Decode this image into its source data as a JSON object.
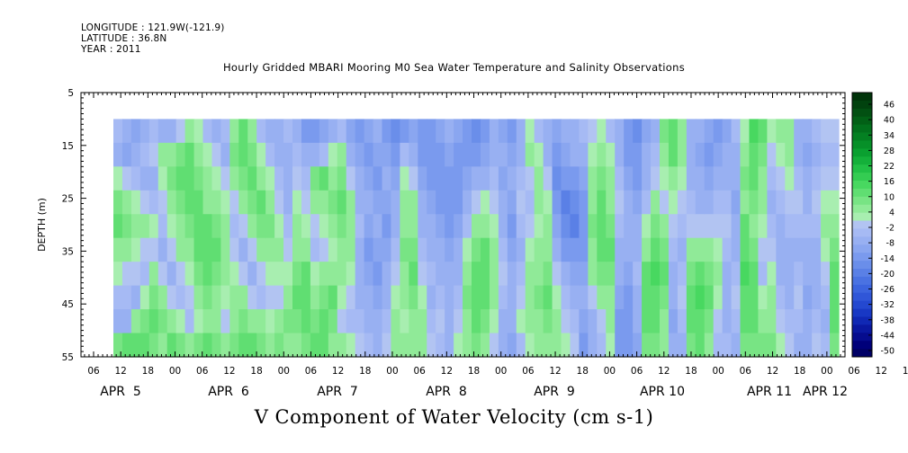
{
  "header": {
    "longitude": "LONGITUDE : 121.9W(-121.9)",
    "latitude": "LATITUDE : 36.8N",
    "year": "YEAR : 2011"
  },
  "chart_data": {
    "type": "heatmap",
    "title": "Hourly Gridded MBARI Mooring M0 Sea Water Temperature and Salinity Observations",
    "bottom_title": "V Component of Water Velocity (cm s-1)",
    "ylabel": "DEPTH (m)",
    "ylim": [
      55,
      5
    ],
    "yticks": [
      "5",
      "15",
      "25",
      "35",
      "45",
      "55"
    ],
    "x_hour_ticks": [
      "06",
      "12",
      "18",
      "00",
      "06",
      "12",
      "18",
      "00",
      "06",
      "12",
      "18",
      "00",
      "06",
      "12",
      "18",
      "00",
      "06",
      "12",
      "18",
      "00",
      "06",
      "12",
      "18",
      "00",
      "06",
      "12",
      "18",
      "00",
      "06",
      "12",
      "18",
      "00"
    ],
    "x_date_labels": [
      "APR  5",
      "APR  6",
      "APR  7",
      "APR  8",
      "APR  9",
      "APR 10",
      "APR 11",
      "APR 12"
    ],
    "data_depth_range": [
      10,
      55
    ],
    "colorbar": {
      "labels": [
        "46",
        "40",
        "34",
        "28",
        "22",
        "16",
        "10",
        "4",
        "-2",
        "-8",
        "-14",
        "-20",
        "-26",
        "-32",
        "-38",
        "-44",
        "-50"
      ],
      "levels": [
        -50,
        -47,
        -44,
        -41,
        -38,
        -35,
        -32,
        -29,
        -26,
        -23,
        -20,
        -17,
        -14,
        -11,
        -8,
        -5,
        -2,
        1,
        4,
        7,
        10,
        13,
        16,
        19,
        22,
        25,
        28,
        31,
        34,
        37,
        40,
        43,
        46,
        49
      ],
      "colors": [
        "#000066",
        "#00007a",
        "#060c8e",
        "#0a18a0",
        "#1028b4",
        "#1838c4",
        "#2448d0",
        "#3056d8",
        "#3c64de",
        "#4a72e2",
        "#5a80e6",
        "#6a8eea",
        "#7a9aee",
        "#8aa6f0",
        "#98b0f2",
        "#a6baf4",
        "#b2c4f2",
        "#a8eeb0",
        "#90ea98",
        "#78e484",
        "#60de72",
        "#48d860",
        "#34cc52",
        "#22c046",
        "#14b03a",
        "#0aa030",
        "#069028",
        "#048022",
        "#02701c",
        "#026016",
        "#025012",
        "#01420e",
        "#01340a"
      ]
    },
    "columns": [
      [
        -5,
        -7,
        2,
        8,
        10,
        6,
        2,
        -3,
        -8,
        8
      ],
      [
        -8,
        -10,
        0,
        6,
        8,
        4,
        0,
        -4,
        -6,
        10
      ],
      [
        -10,
        -8,
        -4,
        2,
        6,
        2,
        -2,
        -6,
        4,
        12
      ],
      [
        -6,
        -4,
        -6,
        -2,
        4,
        0,
        -4,
        2,
        8,
        10
      ],
      [
        -4,
        -2,
        -8,
        -4,
        2,
        -2,
        4,
        8,
        10,
        8
      ],
      [
        -6,
        4,
        2,
        -2,
        -4,
        -6,
        -2,
        4,
        8,
        6
      ],
      [
        -8,
        6,
        8,
        4,
        2,
        -2,
        -6,
        -2,
        4,
        10
      ],
      [
        -2,
        8,
        10,
        8,
        6,
        4,
        -2,
        -4,
        2,
        8
      ],
      [
        4,
        10,
        12,
        10,
        8,
        6,
        2,
        -2,
        -4,
        6
      ],
      [
        2,
        6,
        8,
        10,
        12,
        10,
        8,
        4,
        2,
        8
      ],
      [
        -4,
        2,
        4,
        6,
        10,
        12,
        10,
        8,
        6,
        10
      ],
      [
        -6,
        -2,
        2,
        4,
        8,
        10,
        8,
        6,
        4,
        8
      ],
      [
        -4,
        -6,
        -2,
        2,
        4,
        6,
        4,
        2,
        -2,
        6
      ],
      [
        6,
        8,
        4,
        -2,
        -4,
        -2,
        2,
        4,
        6,
        8
      ],
      [
        10,
        12,
        8,
        4,
        -2,
        -6,
        -2,
        4,
        8,
        10
      ],
      [
        4,
        8,
        10,
        8,
        4,
        -2,
        -6,
        -2,
        6,
        10
      ],
      [
        -4,
        2,
        6,
        10,
        8,
        4,
        -2,
        -4,
        4,
        8
      ],
      [
        -8,
        -4,
        2,
        6,
        8,
        6,
        2,
        -2,
        2,
        6
      ],
      [
        -6,
        -8,
        -4,
        -2,
        2,
        4,
        2,
        -2,
        4,
        8
      ],
      [
        -4,
        -6,
        -8,
        -6,
        -4,
        -2,
        2,
        6,
        8,
        6
      ],
      [
        -8,
        -4,
        -2,
        2,
        4,
        6,
        8,
        10,
        8,
        6
      ],
      [
        -12,
        -8,
        -4,
        -2,
        2,
        6,
        10,
        12,
        10,
        8
      ],
      [
        -14,
        -6,
        8,
        4,
        -2,
        -4,
        2,
        6,
        8,
        10
      ],
      [
        -10,
        -4,
        10,
        6,
        2,
        -2,
        4,
        8,
        10,
        12
      ],
      [
        -8,
        2,
        6,
        8,
        4,
        2,
        6,
        10,
        8,
        6
      ],
      [
        -4,
        4,
        8,
        10,
        8,
        6,
        4,
        2,
        -2,
        4
      ],
      [
        -10,
        -6,
        -2,
        4,
        6,
        4,
        2,
        -2,
        -4,
        2
      ],
      [
        -12,
        -10,
        -8,
        -6,
        -4,
        -6,
        -8,
        -6,
        -4,
        -2
      ],
      [
        -10,
        -12,
        -10,
        -8,
        -10,
        -12,
        -10,
        -8,
        -6,
        -4
      ],
      [
        -8,
        -10,
        -12,
        -10,
        -8,
        -10,
        -12,
        -10,
        -8,
        -6
      ],
      [
        -14,
        -10,
        -8,
        -10,
        -12,
        -10,
        -8,
        -6,
        -4,
        -2
      ],
      [
        -16,
        -12,
        -10,
        -8,
        -6,
        -4,
        -2,
        2,
        4,
        6
      ],
      [
        -12,
        -4,
        2,
        4,
        6,
        8,
        6,
        4,
        2,
        4
      ],
      [
        -10,
        -6,
        -2,
        4,
        6,
        8,
        10,
        8,
        6,
        4
      ],
      [
        -14,
        -12,
        -10,
        -8,
        -6,
        -4,
        -2,
        2,
        4,
        6
      ],
      [
        -12,
        -14,
        -12,
        -10,
        -8,
        -6,
        -4,
        -6,
        -4,
        -2
      ],
      [
        -10,
        -12,
        -14,
        -12,
        -10,
        -8,
        -6,
        -4,
        -2,
        -4
      ],
      [
        -8,
        -10,
        -12,
        -14,
        -12,
        -10,
        -8,
        -6,
        -8,
        -6
      ],
      [
        -10,
        -12,
        -14,
        -12,
        -10,
        -8,
        -6,
        -4,
        -2,
        2
      ],
      [
        -14,
        -12,
        -10,
        -8,
        -4,
        2,
        6,
        8,
        6,
        4
      ],
      [
        -16,
        -14,
        -8,
        -2,
        4,
        8,
        10,
        12,
        10,
        8
      ],
      [
        -12,
        -10,
        -6,
        2,
        6,
        10,
        12,
        10,
        8,
        6
      ],
      [
        -8,
        -6,
        -4,
        -2,
        2,
        4,
        6,
        4,
        2,
        -2
      ],
      [
        -10,
        -8,
        -10,
        -8,
        -6,
        -4,
        -2,
        -4,
        -6,
        -8
      ],
      [
        -12,
        -10,
        -8,
        -10,
        -12,
        -10,
        -8,
        -6,
        -8,
        -10
      ],
      [
        -8,
        -6,
        -4,
        -2,
        -4,
        -6,
        -4,
        -2,
        2,
        -4
      ],
      [
        2,
        4,
        -2,
        -4,
        -2,
        2,
        4,
        6,
        4,
        2
      ],
      [
        -4,
        2,
        6,
        4,
        2,
        4,
        6,
        8,
        6,
        4
      ],
      [
        -8,
        -6,
        -2,
        2,
        4,
        6,
        8,
        10,
        8,
        6
      ],
      [
        -10,
        -12,
        -16,
        -14,
        -10,
        -6,
        -2,
        2,
        4,
        6
      ],
      [
        -8,
        -10,
        -14,
        -18,
        -16,
        -12,
        -8,
        -4,
        -2,
        2
      ],
      [
        -6,
        -8,
        -12,
        -16,
        -18,
        -14,
        -10,
        -6,
        -4,
        -2
      ],
      [
        -4,
        -6,
        -10,
        -12,
        -14,
        -12,
        -10,
        -8,
        -10,
        -12
      ],
      [
        -2,
        2,
        4,
        6,
        8,
        6,
        4,
        -2,
        -6,
        -8
      ],
      [
        2,
        6,
        8,
        10,
        12,
        10,
        8,
        4,
        -2,
        -4
      ],
      [
        -4,
        2,
        4,
        6,
        8,
        10,
        8,
        6,
        4,
        2
      ],
      [
        -8,
        -6,
        -4,
        -2,
        -4,
        -6,
        -8,
        -10,
        -12,
        -14
      ],
      [
        -14,
        -12,
        -10,
        -8,
        -6,
        -8,
        -10,
        -12,
        -14,
        -12
      ],
      [
        -16,
        -14,
        -12,
        -10,
        -8,
        -6,
        -4,
        -6,
        -8,
        -10
      ],
      [
        -10,
        -8,
        -6,
        -4,
        2,
        6,
        10,
        12,
        10,
        8
      ],
      [
        -6,
        -4,
        -2,
        4,
        8,
        12,
        14,
        12,
        10,
        8
      ],
      [
        8,
        6,
        2,
        -2,
        4,
        8,
        10,
        8,
        6,
        4
      ],
      [
        12,
        10,
        6,
        2,
        -2,
        -4,
        -6,
        -8,
        -10,
        -8
      ],
      [
        6,
        4,
        2,
        -2,
        -4,
        -6,
        -4,
        -2,
        -4,
        -6
      ],
      [
        -6,
        -8,
        -6,
        -4,
        -2,
        4,
        8,
        12,
        10,
        8
      ],
      [
        -8,
        -10,
        -8,
        -6,
        -2,
        6,
        12,
        14,
        12,
        10
      ],
      [
        -10,
        -12,
        -10,
        -6,
        -2,
        4,
        8,
        10,
        8,
        6
      ],
      [
        -12,
        -10,
        -8,
        -4,
        -2,
        2,
        4,
        2,
        -2,
        -4
      ],
      [
        -10,
        -8,
        -6,
        -4,
        -2,
        -4,
        -6,
        -8,
        -6,
        -4
      ],
      [
        -4,
        -6,
        -8,
        -10,
        -8,
        -6,
        -4,
        -2,
        -4,
        -6
      ],
      [
        2,
        6,
        8,
        6,
        10,
        12,
        14,
        12,
        10,
        8
      ],
      [
        14,
        12,
        10,
        8,
        6,
        8,
        10,
        12,
        10,
        8
      ],
      [
        10,
        8,
        6,
        4,
        2,
        -2,
        -4,
        2,
        6,
        8
      ],
      [
        2,
        -2,
        -4,
        -6,
        -4,
        -2,
        2,
        4,
        6,
        8
      ],
      [
        4,
        2,
        -2,
        -4,
        -6,
        -8,
        -6,
        -4,
        -2,
        2
      ],
      [
        6,
        4,
        2,
        -2,
        -4,
        -6,
        -8,
        -6,
        -4,
        -2
      ],
      [
        -8,
        -6,
        -4,
        -2,
        -4,
        -6,
        -4,
        -2,
        -4,
        -6
      ],
      [
        -8,
        -10,
        -8,
        -6,
        -4,
        -6,
        -8,
        -10,
        -8,
        -6
      ],
      [
        -4,
        -6,
        -4,
        -2,
        -4,
        -6,
        -8,
        -6,
        -4,
        -2
      ],
      [
        -2,
        -4,
        -2,
        2,
        4,
        2,
        -2,
        -4,
        -6,
        -4
      ],
      [
        -2,
        -4,
        -2,
        2,
        6,
        8,
        10,
        12,
        10,
        8
      ]
    ]
  }
}
